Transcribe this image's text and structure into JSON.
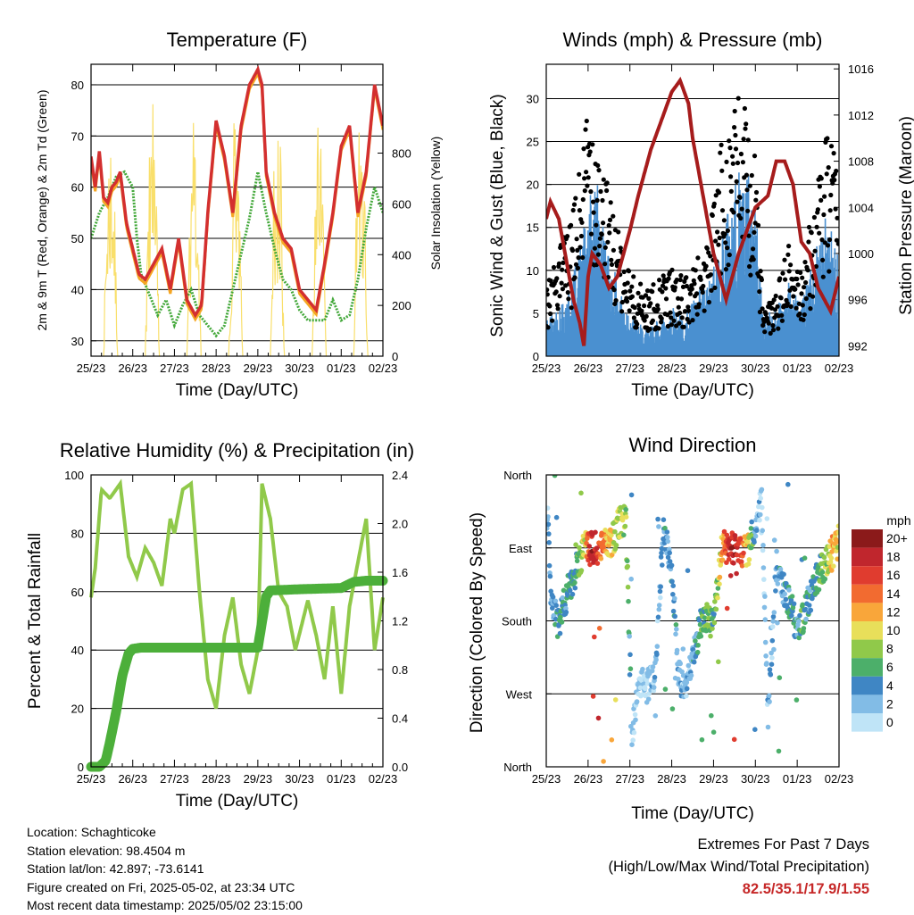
{
  "chart_data": [
    {
      "type": "line",
      "title": "Temperature (F)",
      "xlabel": "Time (Day/UTC)",
      "ylabel": "2m & 9m T (Red, Orange) & 2m Td (Green)",
      "y2label": "Solar Insolation (Yellow)",
      "x_ticks": [
        "25/23",
        "26/23",
        "27/23",
        "28/23",
        "29/23",
        "30/23",
        "01/23",
        "02/23"
      ],
      "ylim": [
        27,
        84
      ],
      "y_ticks": [
        30,
        40,
        50,
        60,
        70,
        80
      ],
      "y2lim": [
        0,
        1150
      ],
      "y2_ticks": [
        0,
        200,
        400,
        600,
        800
      ],
      "grid": true,
      "colors": {
        "temp2m": "#d32f2f",
        "temp9m": "#f5a623",
        "dewpoint": "#43a83a",
        "solar": "#f9df6b"
      },
      "series": [
        {
          "series_key": "temp2m",
          "day": [
            0,
            0.1,
            0.2,
            0.3,
            0.4,
            0.5,
            0.6,
            0.7,
            0.85,
            1.0,
            1.15,
            1.3,
            1.5,
            1.7,
            1.9,
            2.1,
            2.3,
            2.5,
            2.65,
            2.8,
            3.0,
            3.2,
            3.4,
            3.6,
            3.8,
            4.0,
            4.1,
            4.2,
            4.4,
            4.6,
            4.8,
            5.0,
            5.2,
            5.4,
            5.6,
            5.8,
            6.0,
            6.2,
            6.4,
            6.6,
            6.8,
            7.0
          ],
          "values": [
            66,
            60,
            67,
            58,
            57,
            60,
            61,
            63,
            53,
            48,
            43,
            42,
            45,
            48,
            40,
            50,
            38,
            35,
            37,
            55,
            73,
            66,
            55,
            72,
            80,
            83,
            80,
            63,
            55,
            50,
            48,
            40,
            38,
            36,
            45,
            55,
            68,
            72,
            55,
            63,
            80,
            72
          ]
        },
        {
          "series_key": "dewpoint",
          "day": [
            0,
            0.2,
            0.4,
            0.6,
            0.8,
            1.0,
            1.1,
            1.2,
            1.4,
            1.6,
            1.8,
            2.0,
            2.2,
            2.4,
            2.6,
            2.8,
            3.0,
            3.2,
            3.4,
            3.6,
            3.8,
            4.0,
            4.2,
            4.4,
            4.6,
            4.8,
            5.0,
            5.2,
            5.4,
            5.6,
            5.8,
            6.0,
            6.2,
            6.4,
            6.6,
            6.8,
            7.0
          ],
          "values": [
            50,
            55,
            58,
            62,
            63,
            60,
            50,
            43,
            39,
            35,
            38,
            33,
            37,
            40,
            35,
            33,
            31,
            33,
            40,
            47,
            54,
            63,
            55,
            48,
            42,
            40,
            36,
            34,
            34,
            34,
            38,
            34,
            35,
            42,
            52,
            60,
            55
          ]
        },
        {
          "series_key": "solar",
          "day": [
            0.3,
            0.64,
            1.3,
            1.64,
            2.3,
            2.64,
            3.3,
            3.64,
            4.3,
            4.64,
            5.3,
            5.64,
            6.3,
            6.64
          ],
          "values": [
            950,
            0,
            1050,
            350,
            1050,
            380,
            1100,
            0,
            1080,
            0,
            1100,
            0,
            1100,
            1000
          ]
        }
      ]
    },
    {
      "type": "line",
      "title": "Winds (mph) & Pressure (mb)",
      "xlabel": "Time (Day/UTC)",
      "ylabel": "Sonic Wind & Gust (Blue, Black)",
      "y2label": "Station Pressure (Maroon)",
      "x_ticks": [
        "25/23",
        "26/23",
        "27/23",
        "28/23",
        "29/23",
        "30/23",
        "01/23",
        "02/23"
      ],
      "ylim": [
        0,
        34
      ],
      "y_ticks": [
        0,
        5,
        10,
        15,
        20,
        25,
        30
      ],
      "y2lim": [
        991.1,
        1016.4
      ],
      "y2_ticks": [
        992,
        996,
        1000,
        1004,
        1008,
        1012,
        1016
      ],
      "grid": true,
      "colors": {
        "wind": "#4a90d0",
        "gust": "#000000",
        "pressure": "#a61c1c"
      },
      "series": [
        {
          "series_key": "wind",
          "day": [
            0,
            0.3,
            0.6,
            0.9,
            1.0,
            1.2,
            1.5,
            1.8,
            2.1,
            2.4,
            2.7,
            3.0,
            3.3,
            3.6,
            3.9,
            4.2,
            4.5,
            4.8,
            5.0,
            5.2,
            5.5,
            5.8,
            6.1,
            6.4,
            6.7,
            7.0
          ],
          "values": [
            3,
            4,
            6,
            10,
            12,
            14,
            8,
            5,
            3,
            2,
            3,
            4,
            3,
            5,
            6,
            10,
            14,
            15,
            12,
            3,
            4,
            6,
            4,
            8,
            11,
            8
          ]
        },
        {
          "series_key": "gust",
          "day": [
            0,
            0.3,
            0.6,
            0.9,
            1.0,
            1.2,
            1.5,
            1.8,
            2.1,
            2.4,
            2.7,
            3.0,
            3.3,
            3.6,
            3.9,
            4.2,
            4.5,
            4.8,
            5.0,
            5.2,
            5.5,
            5.8,
            6.1,
            6.4,
            6.7,
            7.0
          ],
          "values": [
            7,
            10,
            12,
            20,
            25,
            22,
            15,
            10,
            7,
            6,
            7,
            8,
            7,
            9,
            11,
            20,
            24,
            22,
            18,
            4,
            6,
            10,
            8,
            14,
            20,
            17
          ]
        },
        {
          "series_key": "pressure",
          "day": [
            0,
            0.1,
            0.3,
            0.5,
            0.65,
            0.8,
            0.9,
            1.0,
            1.1,
            1.3,
            1.5,
            1.7,
            2.0,
            2.2,
            2.5,
            2.8,
            3.0,
            3.2,
            3.4,
            3.5,
            3.7,
            4.0,
            4.3,
            4.6,
            5.0,
            5.3,
            5.5,
            5.7,
            5.9,
            6.1,
            6.3,
            6.5,
            6.8,
            7.0
          ],
          "values": [
            1003,
            1004.5,
            1003,
            999,
            996,
            994,
            992,
            998,
            1000,
            999,
            997,
            998,
            1002,
            1005,
            1009,
            1012,
            1014,
            1015,
            1013,
            1010,
            1006,
            1000,
            996,
            1000,
            1004,
            1005,
            1008,
            1008,
            1006,
            1001,
            1000,
            997,
            995,
            998
          ]
        }
      ]
    },
    {
      "type": "line",
      "title": "Relative Humidity (%) & Precipitation (in)",
      "xlabel": "Time (Day/UTC)",
      "ylabel": "Percent & Total Rainfall",
      "x_ticks": [
        "25/23",
        "26/23",
        "27/23",
        "28/23",
        "29/23",
        "30/23",
        "01/23",
        "02/23"
      ],
      "ylim": [
        0,
        100
      ],
      "y_ticks": [
        0,
        20,
        40,
        60,
        80,
        100
      ],
      "y2lim": [
        0,
        2.4
      ],
      "y2_ticks": [
        "0.0",
        "0.4",
        "0.8",
        "1.2",
        "1.6",
        "2.0",
        "2.4"
      ],
      "grid": true,
      "colors": {
        "rh": "#90c94a",
        "precip": "#4caf3a"
      },
      "series": [
        {
          "series_key": "rh",
          "day": [
            0,
            0.1,
            0.25,
            0.45,
            0.7,
            0.9,
            1.1,
            1.3,
            1.5,
            1.7,
            1.9,
            2.0,
            2.2,
            2.4,
            2.6,
            2.8,
            3.0,
            3.2,
            3.4,
            3.6,
            3.8,
            4.0,
            4.1,
            4.3,
            4.5,
            4.7,
            4.9,
            5.2,
            5.4,
            5.6,
            5.8,
            6.0,
            6.2,
            6.4,
            6.6,
            6.8,
            7.0
          ],
          "values": [
            58,
            68,
            95,
            92,
            97,
            72,
            65,
            75,
            70,
            62,
            85,
            80,
            95,
            97,
            60,
            30,
            20,
            45,
            58,
            35,
            25,
            40,
            97,
            85,
            60,
            55,
            40,
            57,
            45,
            30,
            55,
            25,
            55,
            70,
            85,
            40,
            58
          ]
        },
        {
          "series_key": "precip",
          "day": [
            0,
            0.2,
            0.35,
            0.45,
            0.6,
            0.75,
            0.9,
            1.0,
            1.2,
            2.0,
            3.0,
            4.0,
            4.2,
            4.3,
            5.0,
            6.0,
            6.3,
            6.6,
            7.0
          ],
          "values": [
            0,
            0,
            0.05,
            0.2,
            0.45,
            0.75,
            0.93,
            0.97,
            0.98,
            0.98,
            0.98,
            0.98,
            1.4,
            1.45,
            1.46,
            1.47,
            1.52,
            1.53,
            1.53
          ]
        }
      ]
    },
    {
      "type": "scatter",
      "title": "Wind Direction",
      "xlabel": "Time (Day/UTC)",
      "ylabel": "Direction (Colored By Speed)",
      "x_ticks": [
        "25/23",
        "26/23",
        "27/23",
        "28/23",
        "29/23",
        "30/23",
        "01/23",
        "02/23"
      ],
      "y_ticks": [
        "North",
        "East",
        "South",
        "West",
        "North"
      ],
      "ylim": [
        0,
        360
      ],
      "legend_title": "mph",
      "legend_placement": "right",
      "legend_labels": [
        "20+",
        "18",
        "16",
        "14",
        "12",
        "10",
        "8",
        "6",
        "4",
        "2",
        "0"
      ],
      "colors": {
        "scale": [
          "#8b1a1a",
          "#c0262d",
          "#e03c2f",
          "#f26b30",
          "#f9a63a",
          "#e8df5a",
          "#90c94a",
          "#4caf6a",
          "#3f86c4",
          "#82bce6",
          "#bfe4f7"
        ]
      },
      "series": [
        {
          "name": "clusters",
          "points": [
            {
              "day": 0.05,
              "dir": 310,
              "speed": 2
            },
            {
              "day": 0.1,
              "dir": 215,
              "speed": 3
            },
            {
              "day": 0.2,
              "dir": 190,
              "speed": 4
            },
            {
              "day": 0.3,
              "dir": 175,
              "speed": 5
            },
            {
              "day": 0.4,
              "dir": 195,
              "speed": 4
            },
            {
              "day": 0.55,
              "dir": 220,
              "speed": 5
            },
            {
              "day": 0.7,
              "dir": 240,
              "speed": 6
            },
            {
              "day": 0.85,
              "dir": 260,
              "speed": 8
            },
            {
              "day": 0.95,
              "dir": 275,
              "speed": 12
            },
            {
              "day": 1.05,
              "dir": 270,
              "speed": 17
            },
            {
              "day": 1.15,
              "dir": 272,
              "speed": 18
            },
            {
              "day": 1.3,
              "dir": 268,
              "speed": 14
            },
            {
              "day": 1.45,
              "dir": 275,
              "speed": 12
            },
            {
              "day": 1.6,
              "dir": 282,
              "speed": 10
            },
            {
              "day": 1.75,
              "dir": 300,
              "speed": 9
            },
            {
              "day": 1.9,
              "dir": 312,
              "speed": 8
            },
            {
              "day": 2.05,
              "dir": 40,
              "speed": 2
            },
            {
              "day": 2.2,
              "dir": 105,
              "speed": 1
            },
            {
              "day": 2.4,
              "dir": 100,
              "speed": 1
            },
            {
              "day": 2.6,
              "dir": 110,
              "speed": 2
            },
            {
              "day": 2.8,
              "dir": 290,
              "speed": 3
            },
            {
              "day": 3.0,
              "dir": 245,
              "speed": 4
            },
            {
              "day": 3.15,
              "dir": 120,
              "speed": 3
            },
            {
              "day": 3.3,
              "dir": 90,
              "speed": 2
            },
            {
              "day": 3.5,
              "dir": 130,
              "speed": 3
            },
            {
              "day": 3.7,
              "dir": 180,
              "speed": 6
            },
            {
              "day": 3.85,
              "dir": 185,
              "speed": 7
            },
            {
              "day": 4.0,
              "dir": 175,
              "speed": 5
            },
            {
              "day": 4.2,
              "dir": 275,
              "speed": 12
            },
            {
              "day": 4.4,
              "dir": 268,
              "speed": 18
            },
            {
              "day": 4.6,
              "dir": 270,
              "speed": 17
            },
            {
              "day": 4.8,
              "dir": 262,
              "speed": 11
            },
            {
              "day": 5.0,
              "dir": 300,
              "speed": 3
            },
            {
              "day": 5.15,
              "dir": 330,
              "speed": 1
            },
            {
              "day": 5.3,
              "dir": 60,
              "speed": 2
            },
            {
              "day": 5.5,
              "dir": 250,
              "speed": 3
            },
            {
              "day": 5.7,
              "dir": 215,
              "speed": 4
            },
            {
              "day": 5.9,
              "dir": 190,
              "speed": 5
            },
            {
              "day": 6.0,
              "dir": 165,
              "speed": 4
            },
            {
              "day": 6.1,
              "dir": 175,
              "speed": 6
            },
            {
              "day": 6.3,
              "dir": 210,
              "speed": 4
            },
            {
              "day": 6.5,
              "dir": 235,
              "speed": 5
            },
            {
              "day": 6.7,
              "dir": 255,
              "speed": 8
            },
            {
              "day": 6.85,
              "dir": 265,
              "speed": 12
            },
            {
              "day": 7.0,
              "dir": 275,
              "speed": 10
            }
          ]
        }
      ]
    }
  ],
  "info": {
    "location": "Location: Schaghticoke",
    "elevation": "Station elevation: 98.4504 m",
    "latlon": "Station lat/lon: 42.897; -73.6141",
    "created": "Figure created on Fri, 2025-05-02, at 23:34 UTC",
    "timestamp": "Most recent data timestamp: 2025/05/02 23:15:00"
  },
  "extremes": {
    "title": "Extremes For Past 7 Days",
    "subtitle": "(High/Low/Max Wind/Total Precipitation)",
    "values": "82.5/35.1/17.9/1.55"
  }
}
